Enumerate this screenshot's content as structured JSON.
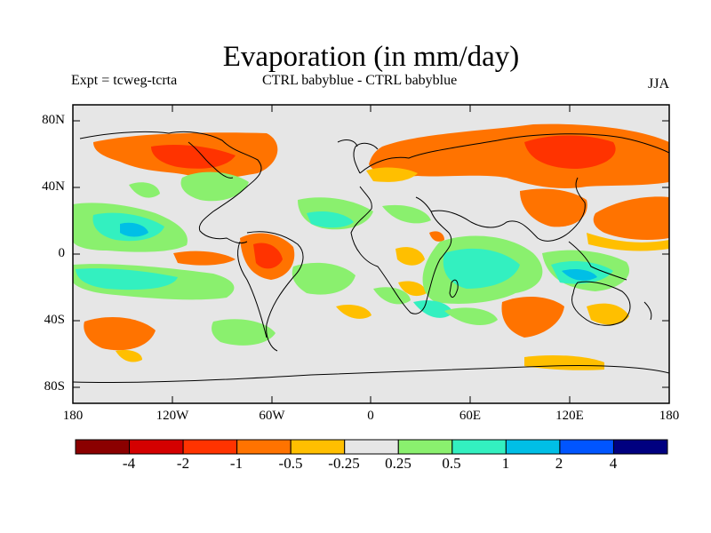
{
  "header": {
    "title": "Evaporation (in mm/day)",
    "expt": "Expt = tcweg-tcrta",
    "comparison": "CTRL babyblue - CTRL babyblue",
    "season": "JJA"
  },
  "axes": {
    "lat_labels": [
      "80N",
      "40N",
      "0",
      "40S",
      "80S"
    ],
    "lon_labels": [
      "180",
      "120W",
      "60W",
      "0",
      "60E",
      "120E",
      "180"
    ]
  },
  "colorbar": {
    "colors": [
      "#8b0000",
      "#d40000",
      "#ff3300",
      "#ff7300",
      "#ffbf00",
      "#e6e6e6",
      "#8af06e",
      "#33f0c0",
      "#00bfe6",
      "#0055ff",
      "#000080"
    ],
    "labels": [
      "-4",
      "-2",
      "-1",
      "-0.5",
      "-0.25",
      "0.25",
      "0.5",
      "1",
      "2",
      "4"
    ]
  },
  "map_fill": {
    "background": "#e6e6e6",
    "orange": "#ffbf00",
    "dark_orange": "#ff7300",
    "red": "#ff3300",
    "green": "#8af06e",
    "teal": "#33f0c0",
    "blue": "#00bfe6"
  }
}
